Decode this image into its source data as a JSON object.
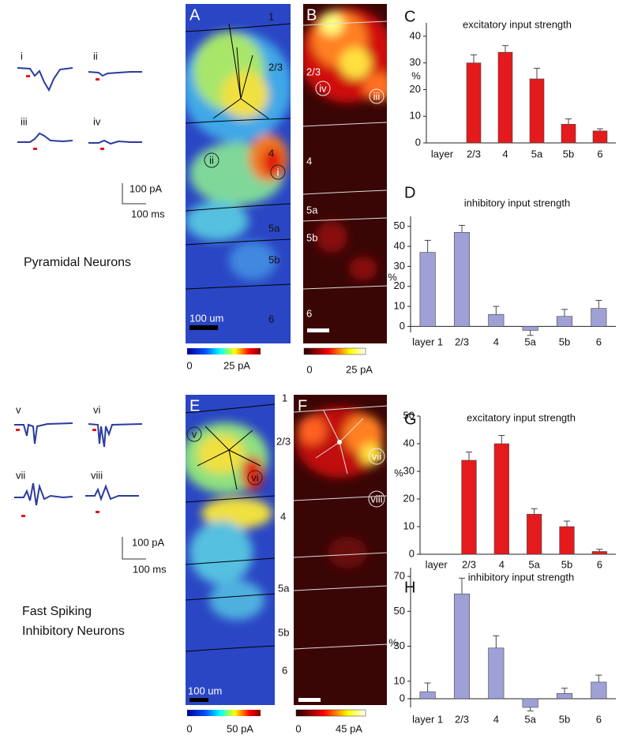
{
  "traces": {
    "pyramidal": {
      "labels": [
        "i",
        "ii",
        "iii",
        "iv"
      ],
      "scale_y": "100 pA",
      "scale_x": "100 ms",
      "caption": "Pyramidal Neurons"
    },
    "fast_spiking": {
      "labels": [
        "v",
        "vi",
        "vii",
        "viii"
      ],
      "scale_y": "100 pA",
      "scale_x": "100 ms",
      "caption_lines": [
        "Fast Spiking",
        "Inhibitory Neurons"
      ]
    }
  },
  "maps": [
    {
      "panel": "A",
      "layers": [
        "1",
        "2/3",
        "4",
        "5a",
        "5b",
        "6"
      ],
      "sites": [
        "ii",
        "i"
      ],
      "scale_bar": "100 um",
      "colorbar": [
        "0",
        "25 pA"
      ]
    },
    {
      "panel": "B",
      "layers": [
        "2/3",
        "4",
        "5a",
        "5b",
        "6"
      ],
      "sites": [
        "iv",
        "iii"
      ],
      "colorbar": [
        "0",
        "25 pA"
      ]
    },
    {
      "panel": "E",
      "layers": [
        "1",
        "2/3",
        "4",
        "5a",
        "5b",
        "6"
      ],
      "sites": [
        "v",
        "vi"
      ],
      "scale_bar": "100 um",
      "colorbar": [
        "0",
        "50 pA"
      ]
    },
    {
      "panel": "F",
      "sites": [
        "vii",
        "viii"
      ],
      "colorbar": [
        "0",
        "45 pA"
      ]
    }
  ],
  "chart_data": [
    {
      "type": "bar",
      "panel": "C",
      "title": "excitatory input strength",
      "y_label": "%",
      "categories": [
        "layer",
        "2/3",
        "4",
        "5a",
        "5b",
        "6"
      ],
      "values": [
        null,
        30,
        34,
        24,
        7,
        4.5
      ],
      "errors": [
        null,
        3,
        2.5,
        4,
        2,
        0.8
      ],
      "color": "#e41a1c",
      "ylim": [
        0,
        45
      ],
      "yticks": [
        0,
        10,
        20,
        30,
        40
      ]
    },
    {
      "type": "bar",
      "panel": "D",
      "title": "inhibitory input strength",
      "y_label": "%",
      "categories": [
        "layer 1",
        "2/3",
        "4",
        "5a",
        "5b",
        "6"
      ],
      "values": [
        37,
        47,
        6,
        -2,
        5,
        9
      ],
      "errors": [
        6,
        3.5,
        4,
        2.5,
        3.5,
        4
      ],
      "color": "#9fa0d6",
      "ylim": [
        -3,
        55
      ],
      "yticks": [
        0,
        10,
        20,
        30,
        40,
        50
      ]
    },
    {
      "type": "bar",
      "panel": "G",
      "title": "excitatory input strength",
      "y_label": "%",
      "categories": [
        "layer",
        "2/3",
        "4",
        "5a",
        "5b",
        "6"
      ],
      "values": [
        null,
        34,
        40,
        14.5,
        10,
        1
      ],
      "errors": [
        null,
        3,
        3,
        2,
        2,
        0.8
      ],
      "color": "#e41a1c",
      "ylim": [
        0,
        50
      ],
      "yticks": [
        0,
        10,
        20,
        30,
        40,
        50
      ]
    },
    {
      "type": "bar",
      "panel": "H",
      "title": "inhibitory input strength",
      "y_label": "%",
      "categories": [
        "layer 1",
        "2/3",
        "4",
        "5a",
        "5b",
        "6"
      ],
      "values": [
        4,
        60,
        29,
        -5,
        3,
        9.5
      ],
      "errors": [
        5,
        9,
        7,
        2,
        3,
        4
      ],
      "color": "#9fa0d6",
      "ylim": [
        -5,
        75
      ],
      "yticks": [
        0,
        10,
        30,
        50,
        70
      ]
    }
  ]
}
